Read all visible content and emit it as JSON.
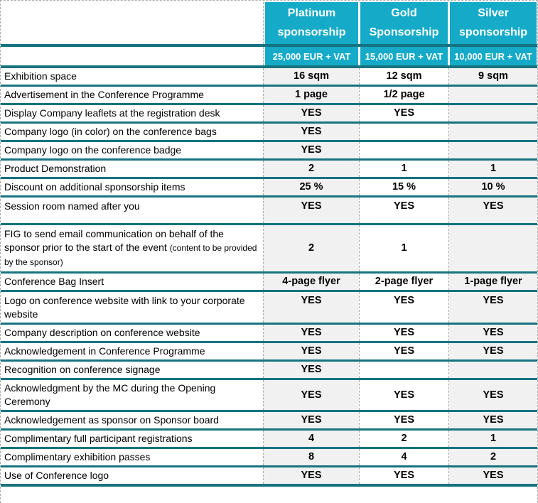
{
  "colors": {
    "header_bg": "#15ABC8",
    "border_teal": "#167380",
    "shaded_col_bg": "#F1F1F1",
    "grid_dash": "#ABABAB",
    "header_text": "#FFFFFF",
    "body_text": "#000000"
  },
  "table": {
    "columns": [
      {
        "id": "platinum",
        "title_line1": "Platinum",
        "title_line2": "sponsorship",
        "price": "25,000 EUR + VAT"
      },
      {
        "id": "gold",
        "title_line1": "Gold",
        "title_line2": "Sponsorship",
        "price": "15,000 EUR + VAT"
      },
      {
        "id": "silver",
        "title_line1": "Silver",
        "title_line2": "sponsorship",
        "price": "10,000 EUR + VAT"
      }
    ],
    "rows": [
      {
        "label": "Exhibition space",
        "platinum": "16 sqm",
        "gold": "12 sqm",
        "silver": "9 sqm"
      },
      {
        "label": "Advertisement in the Conference Programme",
        "platinum": "1 page",
        "gold": "1/2 page",
        "silver": ""
      },
      {
        "label": "Display Company leaflets at the registration desk",
        "platinum": "YES",
        "gold": "YES",
        "silver": ""
      },
      {
        "label": "Company logo (in color) on the conference bags",
        "platinum": "YES",
        "gold": "",
        "silver": ""
      },
      {
        "label": "Company logo  on the conference badge",
        "platinum": "YES",
        "gold": "",
        "silver": ""
      },
      {
        "label": "Product Demonstration",
        "platinum": "2",
        "gold": "1",
        "silver": "1"
      },
      {
        "label": "Discount on additional sponsorship items",
        "platinum": "25 %",
        "gold": "15 %",
        "silver": "10 %"
      },
      {
        "label": "Session room named after you",
        "platinum": "YES",
        "gold": "YES",
        "silver": "YES"
      },
      {
        "label": "FIG to send email communication on behalf of the sponsor prior to the start of the event",
        "label_small": "(content to be provided by the sponsor)",
        "platinum": "2",
        "gold": "1",
        "silver": ""
      },
      {
        "label": "Conference Bag Insert",
        "platinum": "4-page flyer",
        "gold": "2-page flyer",
        "silver": "1-page flyer"
      },
      {
        "label": "Logo on conference website with link to your corporate website",
        "platinum": "YES",
        "gold": "YES",
        "silver": "YES"
      },
      {
        "label": "Company description on conference website",
        "platinum": "YES",
        "gold": "YES",
        "silver": "YES"
      },
      {
        "label": "Acknowledgement in Conference Programme",
        "platinum": "YES",
        "gold": "YES",
        "silver": "YES"
      },
      {
        "label": "Recognition on conference signage",
        "platinum": "YES",
        "gold": "",
        "silver": ""
      },
      {
        "label": "Acknowledgment by the MC during the Opening Ceremony",
        "platinum": "YES",
        "gold": "YES",
        "silver": "YES"
      },
      {
        "label": "Acknowledgement as sponsor on Sponsor board",
        "platinum": "YES",
        "gold": "YES",
        "silver": "YES"
      },
      {
        "label": "Complimentary full participant registrations",
        "platinum": "4",
        "gold": "2",
        "silver": "1"
      },
      {
        "label": "Complimentary exhibition passes",
        "platinum": "8",
        "gold": "4",
        "silver": "2"
      },
      {
        "label": "Use of Conference logo",
        "platinum": "YES",
        "gold": "YES",
        "silver": "YES"
      }
    ]
  }
}
